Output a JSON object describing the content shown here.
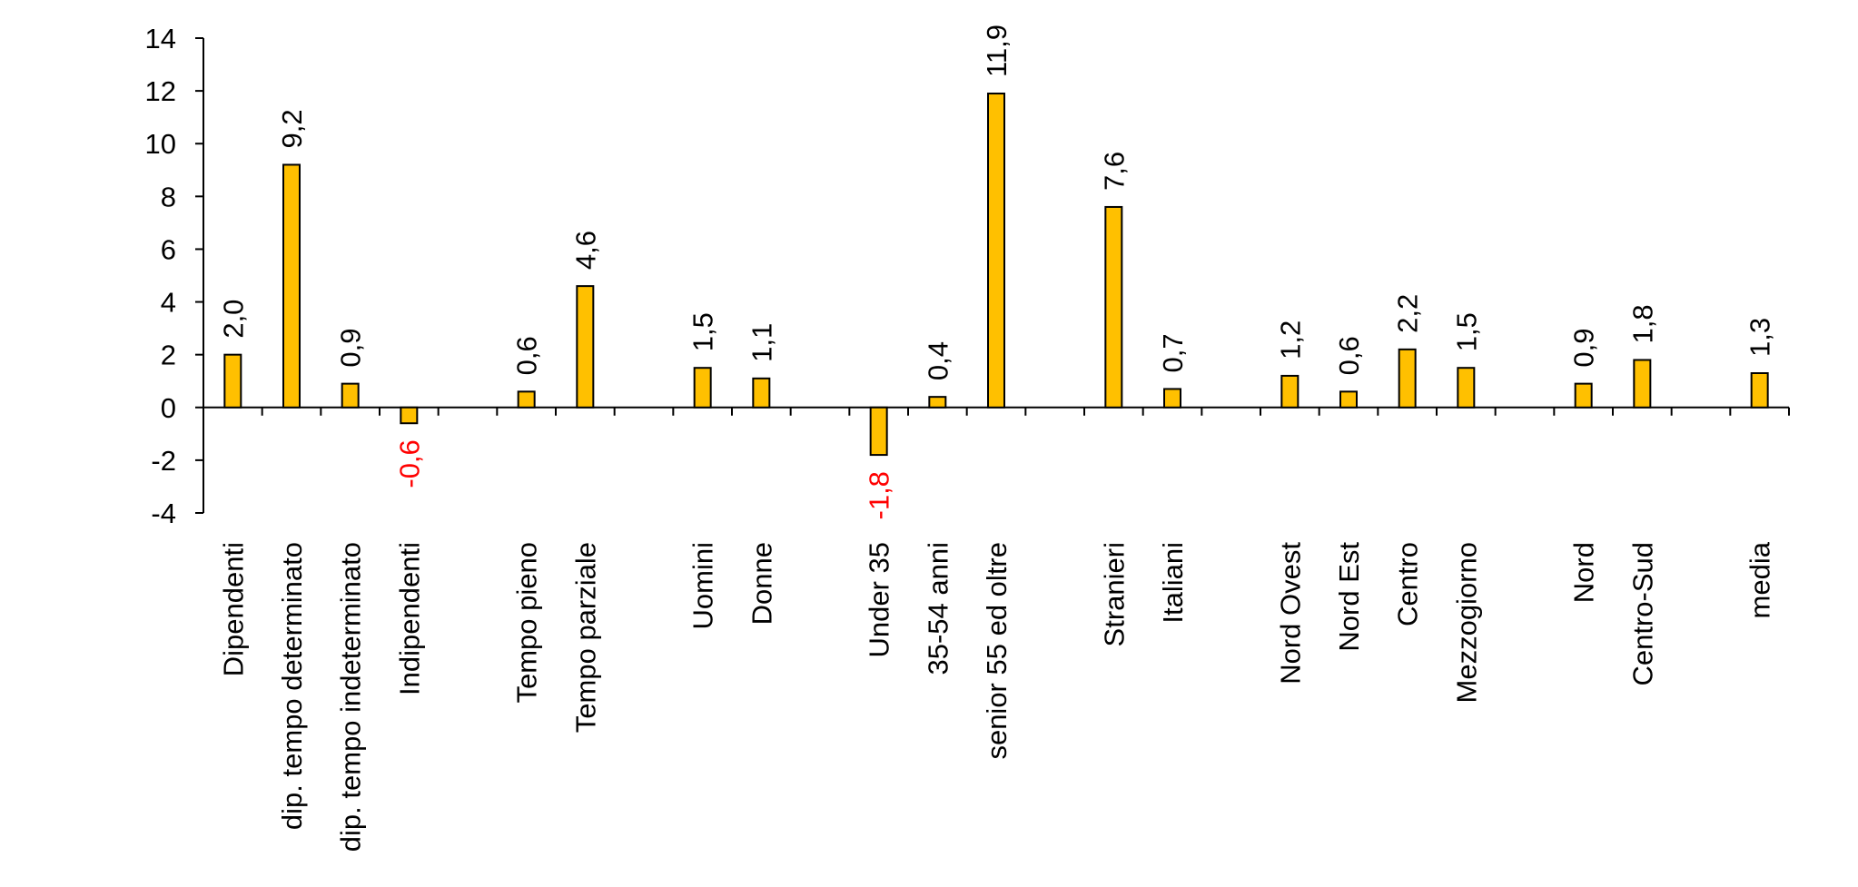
{
  "chart_data": {
    "type": "bar",
    "title": "",
    "xlabel": "",
    "ylabel": "",
    "ylim": [
      -4,
      14
    ],
    "yticks": [
      -4,
      -2,
      0,
      2,
      4,
      6,
      8,
      10,
      12,
      14
    ],
    "ytick_labels": [
      "-4",
      "-2",
      "0",
      "2",
      "4",
      "6",
      "8",
      "10",
      "12",
      "14"
    ],
    "grid": false,
    "legend": "none",
    "colors": {
      "bar_fill": "#FFC000",
      "bar_stroke": "#000000",
      "positive_label": "#000000",
      "negative_label": "#FF0000"
    },
    "categories": [
      "Dipendenti",
      "dip. tempo determinato",
      "dip. tempo indeterminato",
      "Indipendenti",
      "",
      "Tempo pieno",
      "Tempo parziale",
      "",
      "Uomini",
      "Donne",
      "",
      "Under 35",
      "35-54 anni",
      "senior 55 ed oltre",
      "",
      "Stranieri",
      "Italiani",
      "",
      "Nord Ovest",
      "Nord Est",
      "Centro",
      "Mezzogiorno",
      "",
      "Nord",
      "Centro-Sud",
      "",
      "media"
    ],
    "values": [
      2.0,
      9.2,
      0.9,
      -0.6,
      null,
      0.6,
      4.6,
      null,
      1.5,
      1.1,
      null,
      -1.8,
      0.4,
      11.9,
      null,
      7.6,
      0.7,
      null,
      1.2,
      0.6,
      2.2,
      1.5,
      null,
      0.9,
      1.8,
      null,
      1.3
    ],
    "data_labels": [
      "2,0",
      "9,2",
      "0,9",
      "-0,6",
      "",
      "0,6",
      "4,6",
      "",
      "1,5",
      "1,1",
      "",
      "-1,8",
      "0,4",
      "11,9",
      "",
      "7,6",
      "0,7",
      "",
      "1,2",
      "0,6",
      "2,2",
      "1,5",
      "",
      "0,9",
      "1,8",
      "",
      "1,3"
    ]
  }
}
